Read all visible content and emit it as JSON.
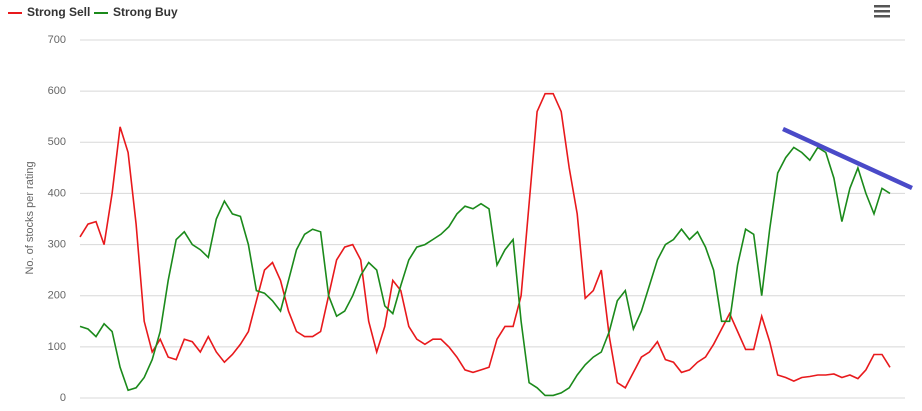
{
  "chart_data": {
    "type": "line",
    "y_label": "No. of stocks per rating",
    "categories": [
      null,
      null,
      null,
      null,
      null,
      null,
      null,
      null,
      null,
      null,
      null,
      null,
      null,
      null,
      null,
      null,
      null,
      null,
      null,
      null,
      null,
      null,
      null,
      null,
      null,
      null,
      null,
      null,
      null,
      null,
      null,
      null,
      null,
      null,
      null,
      null,
      null,
      null,
      null,
      null,
      null,
      null,
      null,
      null,
      null,
      null,
      null,
      null,
      null,
      null,
      null,
      null,
      null,
      null,
      null,
      null,
      null,
      null,
      null,
      null,
      null,
      null,
      null,
      null,
      null,
      null,
      null,
      null,
      null,
      null,
      null,
      null,
      null,
      null,
      null,
      null,
      null,
      null,
      null,
      null,
      null,
      null,
      null,
      null,
      null,
      null,
      null,
      null,
      null,
      null,
      null,
      null,
      null,
      null,
      null,
      null,
      null,
      null,
      null,
      null,
      null,
      null
    ],
    "series": [
      {
        "name": "Strong Sell",
        "color": "#e8191c",
        "values": [
          315,
          340,
          345,
          300,
          400,
          530,
          480,
          340,
          150,
          90,
          115,
          80,
          75,
          115,
          110,
          90,
          120,
          90,
          70,
          85,
          105,
          130,
          190,
          250,
          265,
          230,
          170,
          130,
          120,
          120,
          130,
          200,
          270,
          295,
          300,
          270,
          150,
          90,
          140,
          230,
          210,
          140,
          115,
          105,
          115,
          115,
          100,
          80,
          55,
          50,
          55,
          60,
          115,
          140,
          140,
          200,
          380,
          560,
          595,
          595,
          560,
          450,
          360,
          195,
          210,
          250,
          120,
          30,
          20,
          50,
          80,
          90,
          110,
          75,
          70,
          50,
          55,
          70,
          80,
          105,
          135,
          165,
          130,
          95,
          95,
          160,
          110,
          45,
          40,
          33,
          40,
          42,
          45,
          45,
          47,
          40,
          45,
          38,
          55,
          85,
          85,
          60
        ]
      },
      {
        "name": "Strong Buy",
        "color": "#1b8a1b",
        "values": [
          140,
          135,
          120,
          145,
          130,
          60,
          15,
          20,
          40,
          75,
          130,
          230,
          310,
          325,
          300,
          290,
          275,
          350,
          385,
          360,
          355,
          300,
          210,
          205,
          190,
          170,
          230,
          290,
          320,
          330,
          325,
          200,
          160,
          170,
          200,
          240,
          265,
          250,
          180,
          165,
          220,
          270,
          295,
          300,
          310,
          320,
          335,
          360,
          375,
          370,
          380,
          370,
          260,
          290,
          310,
          150,
          30,
          20,
          5,
          5,
          10,
          20,
          45,
          65,
          80,
          90,
          130,
          190,
          210,
          135,
          170,
          220,
          270,
          300,
          310,
          330,
          310,
          325,
          295,
          250,
          150,
          150,
          260,
          330,
          320,
          200,
          330,
          440,
          470,
          490,
          480,
          465,
          490,
          480,
          430,
          345,
          410,
          450,
          400,
          360,
          410,
          400
        ]
      }
    ],
    "ylim": [
      0,
      700
    ],
    "yticks": [
      0,
      100,
      200,
      300,
      400,
      500,
      600,
      700
    ],
    "grid": true
  }
}
